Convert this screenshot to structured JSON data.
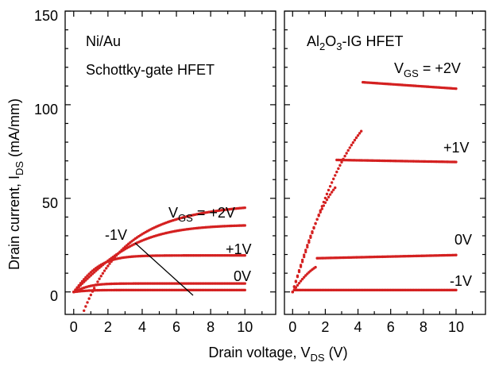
{
  "chart_data": {
    "type": "scatter",
    "ylabel": "Drain current, I",
    "ylabel_sub": "DS",
    "ylabel_unit": " (mA/mm)",
    "xlabel": "Drain voltage, V",
    "xlabel_sub": "DS",
    "xlabel_unit": " (V)",
    "ylim": [
      -12,
      150
    ],
    "xlim": [
      -0.5,
      11.8
    ],
    "y_ticks": [
      0,
      50,
      100,
      150
    ],
    "x_ticks": [
      0,
      2,
      4,
      6,
      8,
      10
    ],
    "colors": {
      "curve": "#d42020",
      "axis": "#000000"
    },
    "panels": [
      {
        "name": "schottky",
        "title_line1": "Ni/Au",
        "title_line2": "Schottky-gate HFET",
        "series": [
          {
            "name": "V_GS = +2V",
            "label_main": "V",
            "label_sub": "GS",
            "label_rest": " = +2V",
            "vmax": 36,
            "k": 0.25,
            "sat_slope": 0,
            "offset": 0,
            "x_start": 0
          },
          {
            "name": "+1V",
            "label_main": "+1V",
            "vmax": 19.5,
            "k": 0.6,
            "sat_slope": 0,
            "offset": 0,
            "x_start": 0
          },
          {
            "name": "0V",
            "label_main": "0V",
            "vmax": 4.5,
            "k": 0.9,
            "sat_slope": 0,
            "offset": 0,
            "x_start": 0
          },
          {
            "name": "-1V",
            "label_main": "-1V",
            "vmax": 1,
            "k": 1,
            "sat_slope": 0,
            "offset": 0,
            "x_start": 0
          },
          {
            "name": "-1V-leak",
            "vmax": 0,
            "k": 0,
            "sat_slope": 0,
            "offset": 0,
            "x_start": 0.6,
            "growth": {
              "a": 28,
              "b": 0.55,
              "x0": 0.6,
              "y0": -10
            }
          }
        ]
      },
      {
        "name": "al2o3",
        "title_parts": [
          "Al",
          "2",
          "O",
          "3",
          "-IG HFET"
        ],
        "series": [
          {
            "name": "V_GS = +2V",
            "label_main": "V",
            "label_sub": "GS",
            "label_rest": " = +2V",
            "vmax": 112,
            "vsat": 4.3,
            "sat_slope": -0.6,
            "linear_slope": 27
          },
          {
            "name": "+1V",
            "label_main": "+1V",
            "vmax": 70.5,
            "vsat": 2.7,
            "sat_slope": -0.15,
            "linear_slope": 29
          },
          {
            "name": "0V",
            "label_main": "0V",
            "vmax": 18,
            "vsat": 1.5,
            "sat_slope": 0.2,
            "linear_slope": 12
          },
          {
            "name": "-1V",
            "label_main": "-1V",
            "vmax": 1,
            "vsat": 0.1,
            "sat_slope": 0,
            "linear_slope": 10
          }
        ]
      }
    ]
  }
}
